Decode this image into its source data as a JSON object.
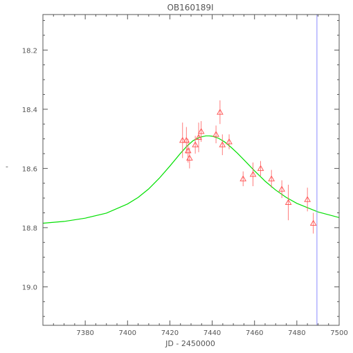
{
  "chart_data": {
    "type": "scatter",
    "title": "OB160189I",
    "xlabel": "JD - 2450000",
    "ylabel": "-",
    "xlim": [
      7360,
      7500
    ],
    "ylim": [
      19.13,
      18.08
    ],
    "y_inverted": true,
    "grid": false,
    "x_ticks": [
      7380,
      7400,
      7420,
      7440,
      7460,
      7480,
      7500
    ],
    "x_tick_labels": [
      "7380",
      "7400",
      "7420",
      "7440",
      "7460",
      "7480",
      "7500"
    ],
    "y_ticks": [
      18.2,
      18.4,
      18.6,
      18.8,
      19.0
    ],
    "y_tick_labels": [
      "18.2",
      "18.4",
      "18.6",
      "18.8",
      "19.0"
    ],
    "colors": {
      "data": "#ff5a5a",
      "model": "#00e000",
      "marker_line": "#8888ff",
      "axes": "#555555"
    },
    "series": [
      {
        "kind": "points",
        "marker": "triangle",
        "points": [
          {
            "x": 7426.0,
            "y": 18.505,
            "err": 0.06
          },
          {
            "x": 7427.8,
            "y": 18.505,
            "err": 0.045
          },
          {
            "x": 7428.6,
            "y": 18.54,
            "err": 0.04
          },
          {
            "x": 7429.3,
            "y": 18.565,
            "err": 0.035
          },
          {
            "x": 7432.0,
            "y": 18.52,
            "err": 0.03
          },
          {
            "x": 7433.6,
            "y": 18.495,
            "err": 0.05
          },
          {
            "x": 7434.8,
            "y": 18.475,
            "err": 0.035
          },
          {
            "x": 7441.8,
            "y": 18.485,
            "err": 0.03
          },
          {
            "x": 7443.7,
            "y": 18.41,
            "err": 0.04
          },
          {
            "x": 7444.8,
            "y": 18.52,
            "err": 0.035
          },
          {
            "x": 7448.0,
            "y": 18.51,
            "err": 0.025
          },
          {
            "x": 7454.6,
            "y": 18.635,
            "err": 0.025
          },
          {
            "x": 7459.3,
            "y": 18.62,
            "err": 0.04
          },
          {
            "x": 7462.9,
            "y": 18.6,
            "err": 0.025
          },
          {
            "x": 7468.0,
            "y": 18.635,
            "err": 0.03
          },
          {
            "x": 7472.9,
            "y": 18.67,
            "err": 0.03
          },
          {
            "x": 7476.0,
            "y": 18.715,
            "err": 0.06
          },
          {
            "x": 7485.0,
            "y": 18.705,
            "err": 0.04
          },
          {
            "x": 7487.8,
            "y": 18.785,
            "err": 0.035
          }
        ]
      },
      {
        "kind": "model",
        "x": [
          7360,
          7370,
          7380,
          7390,
          7400,
          7405,
          7410,
          7415,
          7420,
          7425,
          7428,
          7431,
          7434,
          7437,
          7438.5,
          7440,
          7443,
          7446,
          7449,
          7452,
          7455,
          7460,
          7465,
          7470,
          7475,
          7480,
          7490,
          7500
        ],
        "y": [
          18.785,
          18.779,
          18.768,
          18.751,
          18.72,
          18.698,
          18.669,
          18.633,
          18.592,
          18.549,
          18.525,
          18.506,
          18.495,
          18.49,
          18.49,
          18.491,
          18.498,
          18.511,
          18.529,
          18.549,
          18.571,
          18.608,
          18.643,
          18.673,
          18.698,
          18.718,
          18.747,
          18.766
        ]
      }
    ],
    "vertical_lines": [
      7489.5
    ]
  }
}
